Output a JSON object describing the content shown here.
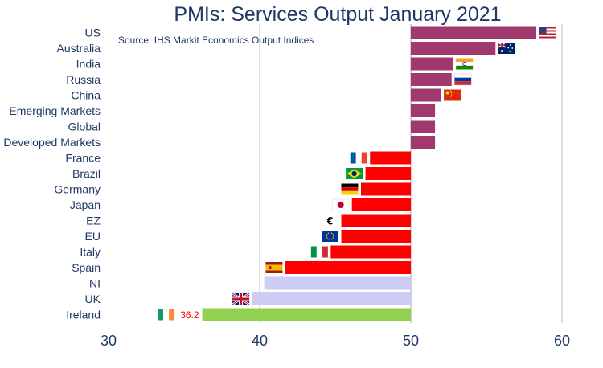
{
  "chart_data": {
    "type": "bar",
    "orientation": "horizontal",
    "title": "PMIs: Services Output January 2021",
    "source": "Source: IHS Markit Economics Output Indices",
    "baseline": 50,
    "xlim": [
      30,
      60
    ],
    "xticks": [
      "30",
      "40",
      "50",
      "60"
    ],
    "grid": "vertical",
    "categories": [
      "US",
      "Australia",
      "India",
      "Russia",
      "China",
      "Emerging Markets",
      "Global",
      "Developed Markets",
      "France",
      "Brazil",
      "Germany",
      "Japan",
      "EZ",
      "EU",
      "Italy",
      "Spain",
      "NI",
      "UK",
      "Ireland"
    ],
    "values": [
      58.3,
      55.6,
      52.8,
      52.7,
      52.0,
      51.6,
      51.6,
      51.6,
      47.3,
      47.0,
      46.7,
      46.1,
      45.4,
      45.4,
      44.7,
      41.7,
      40.3,
      39.5,
      36.2
    ],
    "data_labels": [
      {
        "category": "Ireland",
        "text": "36.2"
      }
    ],
    "colors": {
      "above": "#a1396e",
      "below": "#ff0000",
      "ni_uk": "#ccccf5",
      "ireland": "#92d050",
      "axis_text": "#1f3864",
      "grid": "#bfbfbf"
    },
    "flags": [
      "us",
      "au",
      "in",
      "ru",
      "cn",
      null,
      null,
      null,
      "fr",
      "br",
      "de",
      "jp",
      "euro-sign",
      "eu",
      "it",
      "es",
      null,
      "gb",
      "ie"
    ],
    "euro_symbol": "€"
  }
}
